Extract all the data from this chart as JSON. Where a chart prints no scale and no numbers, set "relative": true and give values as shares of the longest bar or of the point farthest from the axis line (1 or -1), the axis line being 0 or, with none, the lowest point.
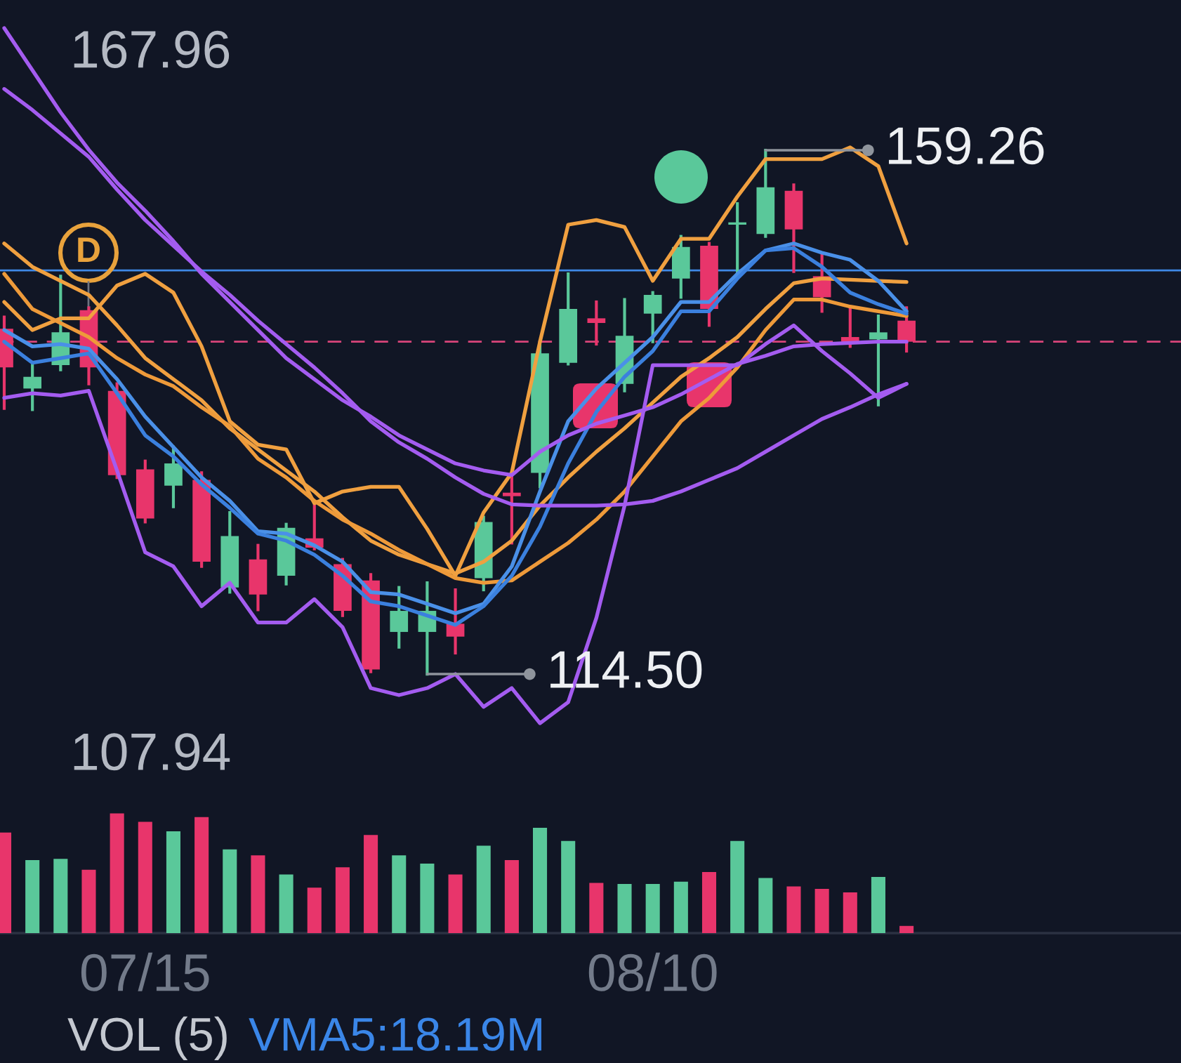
{
  "chart_data": [
    {
      "type": "candlestick",
      "categories": [
        null,
        null,
        null,
        null,
        null,
        null,
        null,
        null,
        null,
        null,
        null,
        null,
        null,
        null,
        null,
        null,
        null,
        null,
        null,
        null,
        null,
        null,
        null,
        null,
        null,
        null,
        null,
        null,
        null,
        null,
        null,
        null,
        null
      ],
      "ohlc": [
        [
          144.0,
          145.0,
          137.2,
          140.7
        ],
        [
          138.9,
          141.1,
          137.1,
          139.9
        ],
        [
          140.9,
          148.5,
          140.5,
          143.7
        ],
        [
          145.6,
          145.8,
          139.3,
          140.7
        ],
        [
          138.7,
          139.3,
          131.3,
          131.5
        ],
        [
          132.0,
          132.7,
          127.5,
          127.8
        ],
        [
          130.6,
          133.9,
          128.8,
          132.5
        ],
        [
          131.1,
          131.7,
          123.7,
          124.1
        ],
        [
          121.9,
          128.3,
          121.5,
          126.3
        ],
        [
          124.3,
          125.5,
          120.0,
          121.3
        ],
        [
          122.9,
          127.3,
          122.2,
          127.0
        ],
        [
          126.1,
          129.1,
          125.2,
          125.3
        ],
        [
          123.9,
          124.3,
          119.5,
          119.9
        ],
        [
          122.5,
          123.0,
          114.7,
          114.9
        ],
        [
          118.1,
          121.9,
          116.8,
          119.9
        ],
        [
          118.1,
          122.3,
          114.5,
          119.9
        ],
        [
          118.8,
          121.7,
          116.3,
          117.7
        ],
        [
          122.7,
          127.9,
          121.7,
          127.5
        ],
        [
          130.0,
          131.7,
          125.7,
          129.7
        ],
        [
          131.7,
          142.9,
          130.5,
          141.9
        ],
        [
          141.1,
          148.7,
          141.0,
          145.7
        ],
        [
          144.9,
          146.3,
          142.7,
          144.5
        ],
        [
          139.3,
          146.5,
          138.7,
          143.4
        ],
        [
          145.3,
          147.1,
          142.9,
          146.9
        ],
        [
          148.3,
          151.9,
          146.7,
          151.0
        ],
        [
          151.1,
          151.3,
          144.3,
          145.7
        ],
        [
          152.9,
          154.7,
          148.5,
          153.1
        ],
        [
          152.1,
          159.26,
          151.9,
          156.1
        ],
        [
          155.8,
          156.3,
          148.9,
          152.5
        ],
        [
          148.5,
          150.3,
          145.5,
          146.7
        ],
        [
          143.3,
          145.7,
          142.5,
          142.9
        ],
        [
          143.1,
          145.1,
          137.5,
          143.7
        ],
        [
          144.7,
          145.8,
          142.1,
          142.9
        ]
      ],
      "colors": [
        "#e8356b",
        "#5ac89a",
        "#5ac89a",
        "#e8356b",
        "#e8356b",
        "#e8356b",
        "#5ac89a",
        "#e8356b",
        "#5ac89a",
        "#e8356b",
        "#5ac89a",
        "#e8356b",
        "#e8356b",
        "#e8356b",
        "#5ac89a",
        "#5ac89a",
        "#e8356b",
        "#5ac89a",
        "#e8356b",
        "#5ac89a",
        "#5ac89a",
        "#e8356b",
        "#5ac89a",
        "#5ac89a",
        "#5ac89a",
        "#e8356b",
        "#5ac89a",
        "#5ac89a",
        "#e8356b",
        "#e8356b",
        "#e8356b",
        "#5ac89a",
        "#e8356b"
      ],
      "series": [
        {
          "type": "line",
          "color": "#f0a040",
          "values": [
            146.3,
            143.9,
            144.9,
            144.9,
            147.7,
            148.7,
            147.1,
            142.5,
            136.1,
            134.1,
            133.7,
            129.1,
            130.1,
            130.5,
            130.5,
            126.9,
            122.9,
            128.3,
            131.7,
            142.9,
            152.9,
            153.3,
            152.7,
            148.1,
            151.7,
            151.7,
            155.3,
            158.5,
            158.5,
            158.5,
            159.5,
            157.9,
            151.3
          ]
        },
        {
          "type": "line",
          "color": "#f0a040",
          "values": [
            151.3,
            149.3,
            148.1,
            146.9,
            144.3,
            141.5,
            139.7,
            137.9,
            135.5,
            133.7,
            131.9,
            130.1,
            127.9,
            125.9,
            124.7,
            123.9,
            123.1,
            124.1,
            125.9,
            128.9,
            131.3,
            133.5,
            135.5,
            137.7,
            139.9,
            141.5,
            143.3,
            145.7,
            147.9,
            148.3,
            148.2,
            148.1,
            148.0
          ]
        },
        {
          "type": "line",
          "color": "#ee9a3a",
          "values": [
            148.7,
            145.7,
            144.5,
            143.3,
            141.5,
            140.1,
            139.1,
            137.3,
            135.7,
            132.9,
            131.3,
            129.3,
            127.7,
            126.5,
            125.1,
            123.9,
            122.7,
            122.3,
            122.5,
            124.1,
            125.7,
            127.7,
            130.1,
            133.1,
            136.1,
            138.1,
            140.7,
            143.9,
            146.5,
            146.5,
            145.9,
            145.5,
            145.1
          ]
        },
        {
          "type": "line",
          "color": "#4a90e8",
          "values": [
            143.9,
            142.5,
            142.7,
            142.3,
            139.7,
            136.5,
            133.9,
            131.3,
            129.3,
            126.7,
            126.5,
            125.5,
            124.1,
            121.5,
            121.3,
            120.5,
            119.7,
            120.5,
            123.7,
            130.1,
            136.1,
            138.9,
            141.1,
            143.3,
            146.3,
            146.3,
            148.7,
            150.7,
            151.3,
            150.5,
            149.9,
            148.1,
            145.5
          ]
        },
        {
          "type": "line",
          "color": "#3b80de",
          "values": [
            142.9,
            141.1,
            141.5,
            141.9,
            138.5,
            134.9,
            133.1,
            130.7,
            128.7,
            126.5,
            125.9,
            124.7,
            122.9,
            120.7,
            120.3,
            119.5,
            118.7,
            120.3,
            122.9,
            127.1,
            132.5,
            136.9,
            139.9,
            142.1,
            145.5,
            145.5,
            148.3,
            150.7,
            150.9,
            149.3,
            147.1,
            146.1,
            145.3
          ]
        },
        {
          "type": "line",
          "color": "#a45cf0",
          "values": [
            169.7,
            166.1,
            162.5,
            159.3,
            156.5,
            154.1,
            151.5,
            148.7,
            146.3,
            143.9,
            141.5,
            139.7,
            137.9,
            136.5,
            134.9,
            133.7,
            132.5,
            131.9,
            131.5,
            133.5,
            134.9,
            135.9,
            136.6,
            137.3,
            138.4,
            139.7,
            141.0,
            141.7,
            142.5,
            142.7,
            142.8,
            142.9,
            142.9
          ]
        },
        {
          "type": "line",
          "color": "#a45cf0",
          "values": [
            164.5,
            162.7,
            160.7,
            158.7,
            155.9,
            153.3,
            151.1,
            148.9,
            146.9,
            144.7,
            142.7,
            140.7,
            138.5,
            136.1,
            134.3,
            132.9,
            131.3,
            129.9,
            129.0,
            128.9,
            128.9,
            128.9,
            129.0,
            129.3,
            130.1,
            131.1,
            132.1,
            133.5,
            134.9,
            136.3,
            137.3,
            138.4,
            139.3
          ]
        },
        {
          "type": "line",
          "color": "#a45cf0",
          "values": [
            138.1,
            138.5,
            138.3,
            138.7,
            131.9,
            124.9,
            123.7,
            120.3,
            122.3,
            118.9,
            118.9,
            120.9,
            118.5,
            113.3,
            112.7,
            113.3,
            114.5,
            111.7,
            113.3,
            110.3,
            112.1,
            119.3,
            128.9,
            140.9,
            140.9,
            140.9,
            140.9,
            142.7,
            144.3,
            142.1,
            140.2,
            138.1,
            139.3
          ]
        }
      ],
      "ylim": [
        107.94,
        172.1
      ],
      "yticks": [
        167.96,
        107.94
      ],
      "ref_lines": [
        {
          "axis": "y",
          "value": 149.0,
          "color": "#3f88e6",
          "line_style": "solid"
        },
        {
          "axis": "y",
          "value": 142.9,
          "color": "#d9457a",
          "line_style": "dashed"
        }
      ],
      "annotations": [
        "D",
        "159.26",
        "114.50"
      ],
      "tick_labels": "y"
    },
    {
      "type": "bar",
      "relative": true,
      "categories": [
        null,
        null,
        null,
        null,
        null,
        "07/15",
        null,
        null,
        null,
        null,
        null,
        null,
        null,
        null,
        null,
        null,
        null,
        null,
        null,
        null,
        null,
        null,
        null,
        "08/10",
        null,
        null,
        null,
        null,
        null,
        null,
        null,
        null,
        null
      ],
      "values": [
        0.84,
        0.61,
        0.62,
        0.53,
        1.0,
        0.93,
        0.85,
        0.97,
        0.7,
        0.65,
        0.49,
        0.38,
        0.55,
        0.82,
        0.65,
        0.58,
        0.49,
        0.73,
        0.61,
        0.88,
        0.77,
        0.42,
        0.41,
        0.41,
        0.43,
        0.51,
        0.77,
        0.46,
        0.39,
        0.37,
        0.34,
        0.47,
        0.06
      ],
      "colors": [
        "#e8356b",
        "#5ac89a",
        "#5ac89a",
        "#e8356b",
        "#e8356b",
        "#e8356b",
        "#5ac89a",
        "#e8356b",
        "#5ac89a",
        "#e8356b",
        "#5ac89a",
        "#e8356b",
        "#e8356b",
        "#e8356b",
        "#5ac89a",
        "#5ac89a",
        "#e8356b",
        "#5ac89a",
        "#e8356b",
        "#5ac89a",
        "#5ac89a",
        "#e8356b",
        "#5ac89a",
        "#5ac89a",
        "#5ac89a",
        "#e8356b",
        "#5ac89a",
        "#5ac89a",
        "#e8356b",
        "#e8356b",
        "#e8356b",
        "#5ac89a",
        "#e8356b"
      ],
      "annotations": [
        "VOL (5)",
        "VMA5:18.19M"
      ],
      "tick_labels": "x"
    }
  ]
}
